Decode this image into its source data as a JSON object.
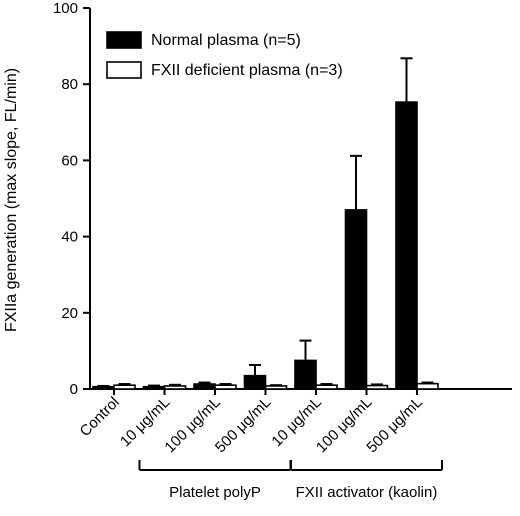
{
  "chart_data": {
    "type": "bar",
    "title": "",
    "xlabel": "",
    "ylabel": "FXIIa generation (max slope, FL/min)",
    "ylim": [
      0,
      100
    ],
    "yticks": [
      "0",
      "20",
      "40",
      "60",
      "80",
      "100"
    ],
    "categories": [
      "Control",
      "10 μg/mL",
      "100 μg/mL",
      "500 μg/mL",
      "10 μg/mL",
      "100 μg/mL",
      "500 μg/mL"
    ],
    "groups": [
      {
        "label": "Platelet polyP",
        "from": 1,
        "to": 3
      },
      {
        "label": "FXII activator (kaolin)",
        "from": 4,
        "to": 6
      }
    ],
    "series": [
      {
        "name": "Normal plasma (n=5)",
        "color": "#000000",
        "values": [
          0.6,
          0.6,
          1.3,
          3.5,
          7.5,
          47,
          75.3
        ],
        "errors": [
          0.2,
          0.3,
          0.4,
          2.8,
          5.2,
          14.2,
          11.5
        ]
      },
      {
        "name": "FXII deficient plasma (n=3)",
        "color": "#ffffff",
        "values": [
          1.0,
          0.8,
          1.0,
          0.8,
          1.0,
          0.9,
          1.4
        ],
        "errors": [
          0.3,
          0.3,
          0.3,
          0.2,
          0.3,
          0.3,
          0.3
        ]
      }
    ],
    "legend_position": "top-left",
    "grid": false
  }
}
